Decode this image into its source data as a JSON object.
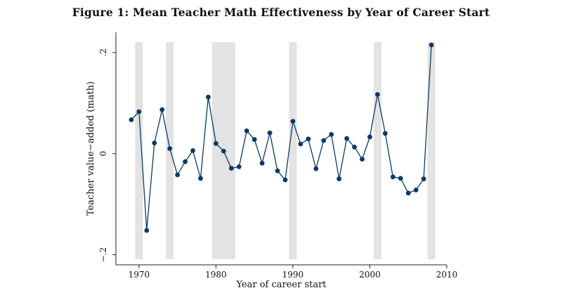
{
  "figure": {
    "title": "Figure 1: Mean Teacher Math Effectiveness by Year of Career Start"
  },
  "chart_data": {
    "type": "line",
    "title": "Figure 1: Mean Teacher Math Effectiveness by Year of Career Start",
    "xlabel": "Year of career start",
    "ylabel": "Teacher value−added (math)",
    "xlim": [
      1967,
      2010
    ],
    "ylim": [
      -0.22,
      0.24
    ],
    "x_ticks": [
      1970,
      1980,
      1990,
      2000,
      2010
    ],
    "x_tick_labels": [
      "1970",
      "1980",
      "1990",
      "2000",
      "2010"
    ],
    "y_ticks": [
      -0.2,
      0,
      0.2
    ],
    "y_tick_labels": [
      "−.2",
      "0",
      ".2"
    ],
    "grid": false,
    "line_color": "#0d3a63",
    "shade_color": "#e3e3e3",
    "shaded_periods": [
      [
        1969.5,
        1970.5
      ],
      [
        1973.5,
        1974.5
      ],
      [
        1979.5,
        1982.5
      ],
      [
        1989.5,
        1990.5
      ],
      [
        2000.5,
        2001.5
      ],
      [
        2007.5,
        2008.5
      ]
    ],
    "series": [
      {
        "x": [
          1969,
          1970,
          1971,
          1972,
          1973,
          1974,
          1975,
          1976,
          1977,
          1978,
          1979,
          1980,
          1981,
          1982,
          1983,
          1984,
          1985,
          1986,
          1987,
          1988,
          1989,
          1990,
          1991,
          1992,
          1993,
          1994,
          1995,
          1996,
          1997,
          1998,
          1999,
          2000,
          2001,
          2002,
          2003,
          2004,
          2005,
          2006,
          2007,
          2008
        ],
        "values": [
          0.067,
          0.083,
          -0.152,
          0.021,
          0.087,
          0.01,
          -0.042,
          -0.016,
          0.006,
          -0.049,
          0.112,
          0.02,
          0.005,
          -0.029,
          -0.026,
          0.045,
          0.028,
          -0.019,
          0.041,
          -0.034,
          -0.052,
          0.064,
          0.019,
          0.029,
          -0.03,
          0.026,
          0.038,
          -0.05,
          0.03,
          0.013,
          -0.011,
          0.033,
          0.117,
          0.04,
          -0.046,
          -0.049,
          -0.078,
          -0.072,
          -0.05,
          0.215
        ]
      }
    ]
  }
}
